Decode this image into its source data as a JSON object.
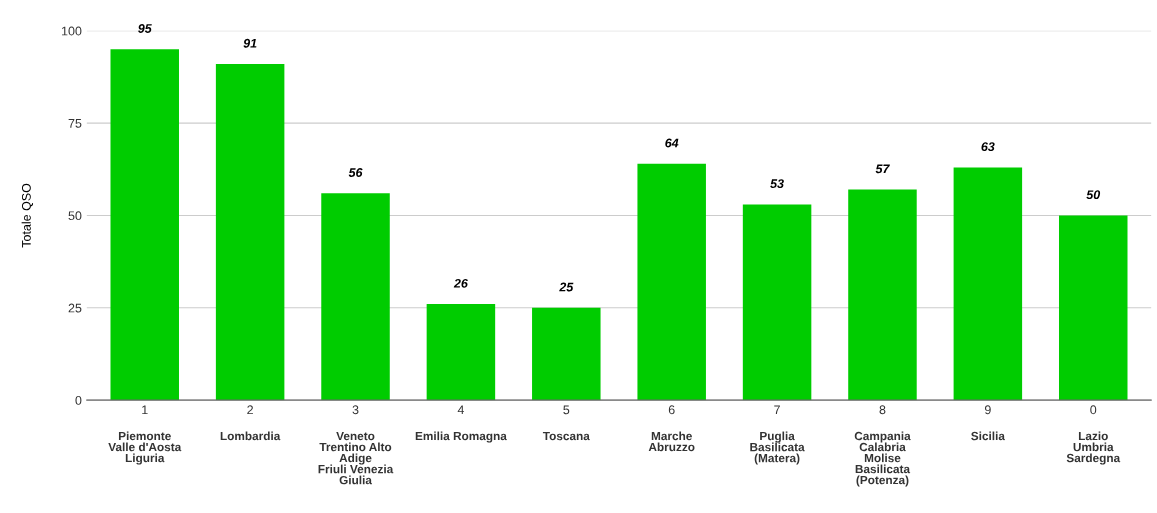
{
  "chart_data": {
    "type": "bar",
    "ylabel": "Totale QSO",
    "categories": [
      "1\n\nPiemonte\nValle d'Aosta\nLiguria",
      "2\n\nLombardia",
      "3\n\nVeneto\nTrentino Alto\nAdige\nFriuli Venezia\nGiulia",
      "4\n\nEmilia Romagna",
      "5\n\nToscana",
      "6\n\nMarche\nAbruzzo",
      "7\n\nPuglia\nBasilicata\n(Matera)",
      "8\n\nCampania\nCalabria\nMolise\nBasilicata\n(Potenza)",
      "9\n\nSicilia",
      "0\n\nLazio\nUmbria\nSardegna"
    ],
    "values": [
      95,
      91,
      56,
      26,
      25,
      64,
      53,
      57,
      63,
      50
    ],
    "color": "#00cc00",
    "ylim": [
      0,
      100
    ],
    "yticks": [
      0,
      25,
      50,
      75,
      100
    ],
    "grid": "y",
    "data_labels": true
  }
}
